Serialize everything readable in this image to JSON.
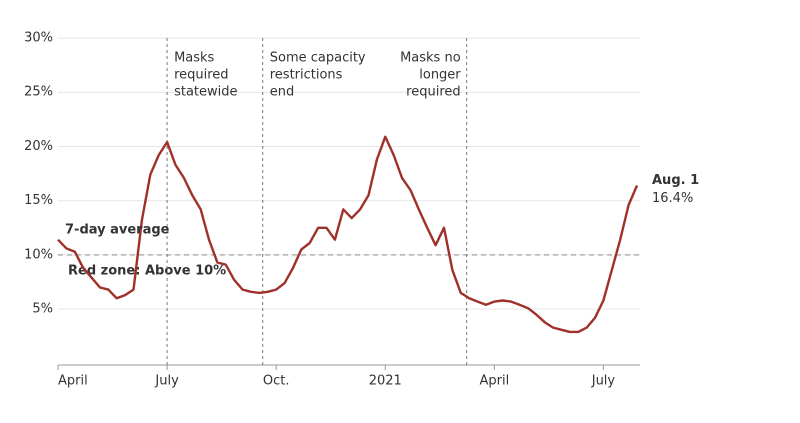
{
  "chart_data": {
    "type": "line",
    "categories": [
      "April",
      null,
      null,
      null,
      null,
      null,
      null,
      null,
      null,
      null,
      null,
      null,
      null,
      "July",
      null,
      null,
      null,
      null,
      null,
      null,
      null,
      null,
      null,
      null,
      null,
      null,
      "Oct.",
      null,
      null,
      null,
      null,
      null,
      null,
      null,
      null,
      null,
      null,
      null,
      null,
      "2021",
      null,
      null,
      null,
      null,
      null,
      null,
      null,
      null,
      null,
      null,
      null,
      null,
      "April",
      null,
      null,
      null,
      null,
      null,
      null,
      null,
      null,
      null,
      null,
      null,
      null,
      "July",
      null,
      null,
      null,
      null
    ],
    "series": [
      {
        "name": "7-day average",
        "color": "#a0302a",
        "values": [
          11.4,
          10.6,
          10.3,
          8.8,
          7.9,
          7.0,
          6.8,
          6.0,
          6.3,
          6.8,
          13.2,
          17.4,
          19.2,
          20.4,
          18.3,
          17.1,
          15.5,
          14.2,
          11.4,
          9.3,
          9.1,
          7.7,
          6.8,
          6.6,
          6.5,
          6.6,
          6.8,
          7.4,
          8.8,
          10.5,
          11.1,
          12.5,
          12.5,
          11.4,
          14.2,
          13.4,
          14.2,
          15.5,
          18.8,
          20.9,
          19.2,
          17.1,
          16.0,
          14.2,
          12.5,
          10.9,
          12.5,
          8.6,
          6.5,
          6.0,
          5.7,
          5.4,
          5.7,
          5.8,
          5.7,
          5.4,
          5.1,
          4.5,
          3.8,
          3.3,
          3.1,
          2.9,
          2.9,
          3.3,
          4.2,
          5.8,
          8.6,
          11.4,
          14.6,
          16.4
        ],
        "value_labels": [
          null,
          null,
          null,
          null,
          null,
          null,
          null,
          null,
          null,
          null,
          null,
          null,
          null,
          null,
          null,
          null,
          null,
          null,
          null,
          null,
          null,
          null,
          null,
          null,
          null,
          null,
          null,
          null,
          null,
          null,
          null,
          null,
          null,
          null,
          null,
          null,
          null,
          null,
          null,
          null,
          null,
          null,
          null,
          null,
          null,
          null,
          null,
          null,
          null,
          null,
          null,
          null,
          null,
          null,
          null,
          null,
          null,
          null,
          null,
          null,
          null,
          null,
          null,
          null,
          null,
          null,
          null,
          null,
          null,
          "16.4%"
        ]
      }
    ],
    "end_label": "Aug. 1",
    "ylim": [
      0,
      30
    ],
    "yticks": [
      {
        "value": 5,
        "label": "5%"
      },
      {
        "value": 10,
        "label": "10%"
      },
      {
        "value": 15,
        "label": "15%"
      },
      {
        "value": 20,
        "label": "20%"
      },
      {
        "value": 25,
        "label": "25%"
      },
      {
        "value": 30,
        "label": "30%"
      }
    ],
    "grid": true,
    "reference": {
      "value": 10,
      "label": "Red zone: Above 10%"
    },
    "events": [
      {
        "at": 13,
        "lines": [
          "Masks",
          "required",
          "statewide"
        ],
        "align": "left"
      },
      {
        "at": 24.4,
        "lines": [
          "Some capacity",
          "restrictions",
          "end"
        ],
        "align": "left"
      },
      {
        "at": 48.7,
        "lines": [
          "Masks no",
          "longer",
          "required"
        ],
        "align": "right"
      }
    ]
  }
}
